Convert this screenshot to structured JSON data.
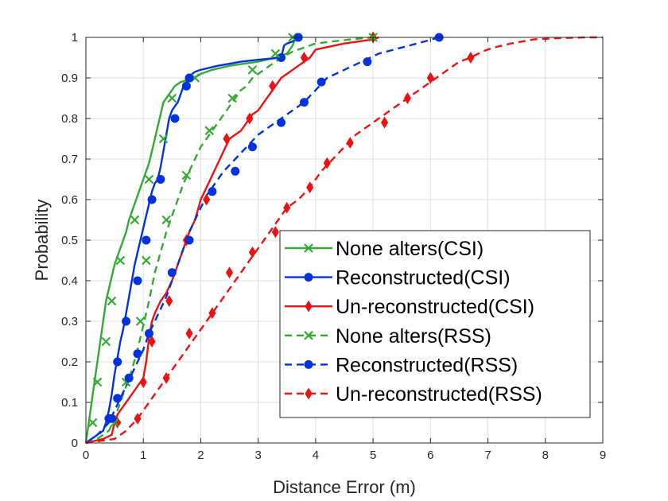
{
  "chart_data": {
    "type": "line",
    "title": "",
    "xlabel": "Distance Error (m)",
    "ylabel": "Probability",
    "xlim": [
      0,
      9
    ],
    "ylim": [
      0,
      1
    ],
    "xticks": [
      0,
      1,
      2,
      3,
      4,
      5,
      6,
      7,
      8,
      9
    ],
    "yticks": [
      0,
      0.1,
      0.2,
      0.3,
      0.4,
      0.5,
      0.6,
      0.7,
      0.8,
      0.9,
      1
    ],
    "grid": true,
    "legend_position": "bottom-right",
    "series": [
      {
        "name": "None alters(CSI)",
        "color": "#33aa33",
        "dash": "solid",
        "marker": "x",
        "x": [
          0,
          0.05,
          0.1,
          0.15,
          0.2,
          0.25,
          0.3,
          0.35,
          0.4,
          0.45,
          0.5,
          0.55,
          0.6,
          0.65,
          0.7,
          0.75,
          0.8,
          0.85,
          0.9,
          0.95,
          1.0,
          1.05,
          1.1,
          1.15,
          1.2,
          1.25,
          1.3,
          1.35,
          1.4,
          1.45,
          1.5,
          1.55,
          1.6,
          1.65,
          1.7,
          1.75,
          1.8,
          1.85,
          1.9,
          1.95,
          2.0,
          2.2,
          2.5,
          3.0,
          3.3,
          3.5,
          3.6,
          3.65
        ],
        "y": [
          0,
          0.05,
          0.1,
          0.15,
          0.2,
          0.25,
          0.3,
          0.35,
          0.38,
          0.41,
          0.44,
          0.46,
          0.48,
          0.5,
          0.52,
          0.55,
          0.57,
          0.59,
          0.61,
          0.63,
          0.65,
          0.67,
          0.69,
          0.72,
          0.75,
          0.78,
          0.81,
          0.84,
          0.85,
          0.86,
          0.87,
          0.88,
          0.885,
          0.89,
          0.892,
          0.895,
          0.897,
          0.9,
          0.902,
          0.905,
          0.91,
          0.92,
          0.93,
          0.94,
          0.95,
          0.96,
          0.98,
          1.0
        ],
        "marker_points": [
          [
            0.12,
            0.05
          ],
          [
            0.2,
            0.15
          ],
          [
            0.35,
            0.25
          ],
          [
            0.45,
            0.35
          ],
          [
            0.6,
            0.45
          ],
          [
            0.85,
            0.55
          ],
          [
            1.1,
            0.65
          ],
          [
            1.35,
            0.75
          ],
          [
            1.5,
            0.85
          ],
          [
            1.9,
            0.9
          ],
          [
            3.6,
            1.0
          ]
        ]
      },
      {
        "name": "Reconstructed(CSI)",
        "color": "#0033dd",
        "dash": "solid",
        "marker": "o",
        "x": [
          0,
          0.1,
          0.2,
          0.3,
          0.35,
          0.4,
          0.45,
          0.5,
          0.55,
          0.6,
          0.65,
          0.7,
          0.75,
          0.8,
          0.85,
          0.9,
          0.95,
          1.0,
          1.05,
          1.1,
          1.15,
          1.2,
          1.25,
          1.3,
          1.35,
          1.4,
          1.45,
          1.5,
          1.55,
          1.6,
          1.65,
          1.7,
          1.75,
          1.8,
          1.85,
          1.9,
          2.0,
          2.3,
          2.7,
          3.0,
          3.4,
          3.45,
          3.5,
          3.6,
          3.7
        ],
        "y": [
          0,
          0.01,
          0.02,
          0.03,
          0.05,
          0.08,
          0.12,
          0.17,
          0.21,
          0.25,
          0.28,
          0.32,
          0.36,
          0.4,
          0.44,
          0.47,
          0.5,
          0.53,
          0.56,
          0.59,
          0.62,
          0.64,
          0.65,
          0.68,
          0.72,
          0.76,
          0.8,
          0.82,
          0.83,
          0.84,
          0.86,
          0.88,
          0.89,
          0.9,
          0.91,
          0.915,
          0.92,
          0.93,
          0.94,
          0.945,
          0.95,
          0.98,
          0.985,
          0.99,
          1.0
        ],
        "marker_points": [
          [
            0.4,
            0.06
          ],
          [
            0.55,
            0.2
          ],
          [
            0.7,
            0.3
          ],
          [
            0.9,
            0.4
          ],
          [
            1.05,
            0.5
          ],
          [
            1.15,
            0.6
          ],
          [
            1.3,
            0.65
          ],
          [
            1.55,
            0.8
          ],
          [
            1.75,
            0.88
          ],
          [
            1.8,
            0.9
          ],
          [
            3.4,
            0.95
          ],
          [
            3.7,
            1.0
          ]
        ]
      },
      {
        "name": "Un-reconstructed(CSI)",
        "color": "#ee1111",
        "dash": "solid",
        "marker": "diamond",
        "x": [
          0,
          0.3,
          0.45,
          0.5,
          0.55,
          0.6,
          0.7,
          0.8,
          0.9,
          1.0,
          1.05,
          1.1,
          1.15,
          1.2,
          1.3,
          1.4,
          1.5,
          1.6,
          1.7,
          1.8,
          1.9,
          2.0,
          2.1,
          2.2,
          2.3,
          2.4,
          2.5,
          2.6,
          2.7,
          2.8,
          2.9,
          3.0,
          3.1,
          3.2,
          3.3,
          3.4,
          3.5,
          3.6,
          3.7,
          3.8,
          3.9,
          4.0,
          4.5,
          5.0,
          5.1
        ],
        "y": [
          0,
          0.01,
          0.02,
          0.05,
          0.07,
          0.08,
          0.1,
          0.12,
          0.14,
          0.16,
          0.2,
          0.26,
          0.3,
          0.32,
          0.35,
          0.37,
          0.4,
          0.44,
          0.48,
          0.52,
          0.55,
          0.6,
          0.63,
          0.66,
          0.69,
          0.72,
          0.75,
          0.76,
          0.77,
          0.79,
          0.81,
          0.82,
          0.84,
          0.86,
          0.88,
          0.9,
          0.91,
          0.92,
          0.93,
          0.94,
          0.95,
          0.97,
          0.985,
          0.995,
          1.0
        ],
        "marker_points": [
          [
            0.55,
            0.05
          ],
          [
            1.0,
            0.15
          ],
          [
            1.15,
            0.25
          ],
          [
            1.45,
            0.35
          ],
          [
            1.75,
            0.5
          ],
          [
            2.1,
            0.6
          ],
          [
            2.45,
            0.75
          ],
          [
            2.85,
            0.8
          ],
          [
            3.25,
            0.88
          ],
          [
            3.8,
            0.95
          ],
          [
            5.0,
            1.0
          ]
        ]
      },
      {
        "name": "None alters(RSS)",
        "color": "#33aa33",
        "dash": "dashed",
        "marker": "x",
        "x": [
          0,
          0.2,
          0.4,
          0.5,
          0.6,
          0.7,
          0.8,
          0.9,
          1.0,
          1.1,
          1.2,
          1.3,
          1.4,
          1.5,
          1.6,
          1.7,
          1.8,
          1.9,
          2.0,
          2.1,
          2.2,
          2.3,
          2.4,
          2.5,
          2.6,
          2.7,
          2.8,
          2.9,
          3.0,
          3.2,
          3.4,
          3.6,
          3.8,
          4.0,
          4.3,
          4.6,
          5.0
        ],
        "y": [
          0,
          0.01,
          0.03,
          0.06,
          0.1,
          0.14,
          0.18,
          0.23,
          0.29,
          0.35,
          0.42,
          0.47,
          0.52,
          0.56,
          0.6,
          0.64,
          0.67,
          0.7,
          0.73,
          0.75,
          0.77,
          0.79,
          0.81,
          0.83,
          0.85,
          0.87,
          0.88,
          0.9,
          0.91,
          0.93,
          0.95,
          0.965,
          0.975,
          0.985,
          0.99,
          0.995,
          1.0
        ],
        "marker_points": [
          [
            0.5,
            0.05
          ],
          [
            0.7,
            0.15
          ],
          [
            0.95,
            0.3
          ],
          [
            1.05,
            0.45
          ],
          [
            1.4,
            0.55
          ],
          [
            1.75,
            0.66
          ],
          [
            2.15,
            0.77
          ],
          [
            2.55,
            0.85
          ],
          [
            2.9,
            0.92
          ],
          [
            3.3,
            0.96
          ],
          [
            5.0,
            1.0
          ]
        ]
      },
      {
        "name": "Reconstructed(RSS)",
        "color": "#0033dd",
        "dash": "dashed",
        "marker": "o",
        "x": [
          0,
          0.2,
          0.4,
          0.5,
          0.6,
          0.7,
          0.8,
          0.9,
          1.0,
          1.1,
          1.2,
          1.3,
          1.4,
          1.5,
          1.6,
          1.7,
          1.8,
          1.9,
          2.0,
          2.1,
          2.2,
          2.4,
          2.6,
          2.8,
          3.0,
          3.2,
          3.4,
          3.6,
          3.8,
          4.0,
          4.2,
          4.5,
          4.8,
          5.1,
          5.5,
          5.9,
          6.15
        ],
        "y": [
          0,
          0.02,
          0.05,
          0.08,
          0.11,
          0.14,
          0.17,
          0.2,
          0.23,
          0.27,
          0.3,
          0.33,
          0.36,
          0.4,
          0.44,
          0.48,
          0.52,
          0.55,
          0.58,
          0.61,
          0.63,
          0.67,
          0.7,
          0.73,
          0.76,
          0.78,
          0.8,
          0.82,
          0.84,
          0.87,
          0.9,
          0.92,
          0.94,
          0.96,
          0.975,
          0.99,
          1.0
        ],
        "marker_points": [
          [
            0.45,
            0.06
          ],
          [
            0.55,
            0.11
          ],
          [
            0.75,
            0.16
          ],
          [
            0.9,
            0.22
          ],
          [
            1.1,
            0.27
          ],
          [
            1.5,
            0.42
          ],
          [
            1.8,
            0.5
          ],
          [
            2.2,
            0.62
          ],
          [
            2.6,
            0.67
          ],
          [
            2.9,
            0.73
          ],
          [
            3.4,
            0.79
          ],
          [
            3.8,
            0.84
          ],
          [
            4.1,
            0.89
          ],
          [
            4.9,
            0.94
          ],
          [
            6.15,
            1.0
          ]
        ]
      },
      {
        "name": "Un-reconstructed(RSS)",
        "color": "#ee1111",
        "dash": "dashed",
        "marker": "diamond",
        "x": [
          0,
          0.5,
          0.7,
          0.9,
          1.1,
          1.3,
          1.5,
          1.7,
          1.9,
          2.1,
          2.3,
          2.5,
          2.7,
          2.9,
          3.1,
          3.3,
          3.5,
          3.7,
          3.9,
          4.1,
          4.3,
          4.5,
          4.7,
          4.9,
          5.1,
          5.3,
          5.5,
          5.7,
          5.9,
          6.1,
          6.3,
          6.5,
          6.7,
          6.9,
          7.1,
          7.4,
          7.8,
          8.2,
          8.7,
          9.0
        ],
        "y": [
          0,
          0.01,
          0.03,
          0.06,
          0.1,
          0.14,
          0.18,
          0.22,
          0.26,
          0.3,
          0.34,
          0.38,
          0.42,
          0.46,
          0.5,
          0.54,
          0.58,
          0.6,
          0.63,
          0.67,
          0.7,
          0.73,
          0.76,
          0.78,
          0.8,
          0.82,
          0.84,
          0.86,
          0.88,
          0.9,
          0.92,
          0.94,
          0.95,
          0.965,
          0.975,
          0.985,
          0.995,
          0.998,
          1.0,
          1.0
        ],
        "marker_points": [
          [
            0.9,
            0.06
          ],
          [
            1.4,
            0.16
          ],
          [
            1.8,
            0.27
          ],
          [
            2.2,
            0.32
          ],
          [
            2.5,
            0.42
          ],
          [
            2.9,
            0.47
          ],
          [
            3.3,
            0.52
          ],
          [
            3.5,
            0.58
          ],
          [
            3.9,
            0.63
          ],
          [
            4.2,
            0.69
          ],
          [
            4.6,
            0.74
          ],
          [
            5.2,
            0.79
          ],
          [
            5.6,
            0.85
          ],
          [
            6.0,
            0.9
          ],
          [
            6.7,
            0.95
          ]
        ]
      }
    ]
  }
}
